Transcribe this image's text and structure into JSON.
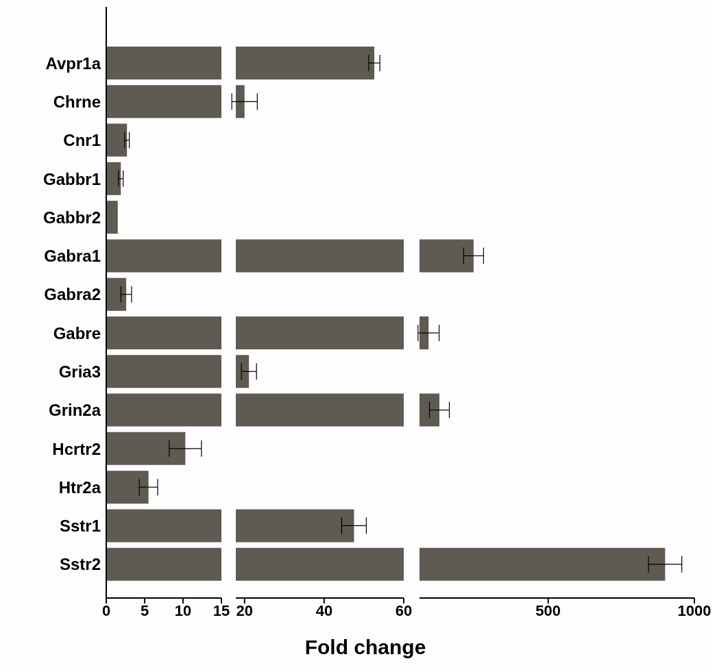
{
  "chart_data": [
    {
      "type": "bar",
      "orientation": "horizontal",
      "categories": [
        "Avpr1a",
        "Chrne",
        "Cnr1",
        "Gabbr1",
        "Gabbr2",
        "Gabra1",
        "Gabra2",
        "Gabre",
        "Gria3",
        "Grin2a",
        "Hcrtr2",
        "Htr2a",
        "Sstr1",
        "Sstr2"
      ],
      "series": [
        {
          "color": "#5f5a52",
          "values": [
            null,
            null,
            2.7,
            1.9,
            1.5,
            null,
            2.6,
            null,
            null,
            null,
            10.3,
            5.5,
            null,
            null
          ],
          "errors": [
            null,
            null,
            0.3,
            0.3,
            null,
            null,
            0.7,
            null,
            null,
            null,
            2.1,
            1.2,
            null,
            null
          ]
        },
        {
          "color": "#5f5a52",
          "values": [
            15,
            15,
            null,
            null,
            null,
            15,
            null,
            15,
            15,
            15,
            null,
            null,
            15,
            15
          ]
        }
      ],
      "xlim": [
        0,
        15
      ],
      "xticks": [
        0,
        5,
        10,
        15
      ]
    },
    {
      "type": "bar",
      "orientation": "horizontal",
      "series": [
        {
          "color": "#5f5a52",
          "values": [
            52.6,
            20,
            null,
            null,
            null,
            null,
            null,
            null,
            21.1,
            null,
            null,
            null,
            47.5,
            null
          ],
          "errors": [
            1.4,
            3.2,
            null,
            null,
            null,
            null,
            null,
            null,
            1.9,
            null,
            null,
            null,
            3.1,
            null
          ]
        },
        {
          "color": "#5f5a52",
          "values": [
            null,
            null,
            null,
            null,
            null,
            60,
            null,
            60,
            null,
            60,
            null,
            null,
            null,
            60
          ]
        }
      ],
      "xlim": [
        17.8,
        60
      ],
      "xticks": [
        20,
        40,
        60
      ],
      "tick_labels": "x",
      "xlabel": "Fold change"
    },
    {
      "type": "bar",
      "orientation": "horizontal",
      "series": [
        {
          "color": "#5f5a52",
          "values": [
            null,
            null,
            null,
            null,
            null,
            245,
            null,
            91,
            null,
            128,
            null,
            null,
            null,
            900
          ],
          "errors": [
            null,
            null,
            null,
            null,
            null,
            34,
            null,
            36,
            null,
            34,
            null,
            null,
            null,
            57
          ]
        }
      ],
      "xlim": [
        60,
        1000
      ],
      "xticks": [
        500,
        1000
      ],
      "tick_labels": "x"
    }
  ]
}
